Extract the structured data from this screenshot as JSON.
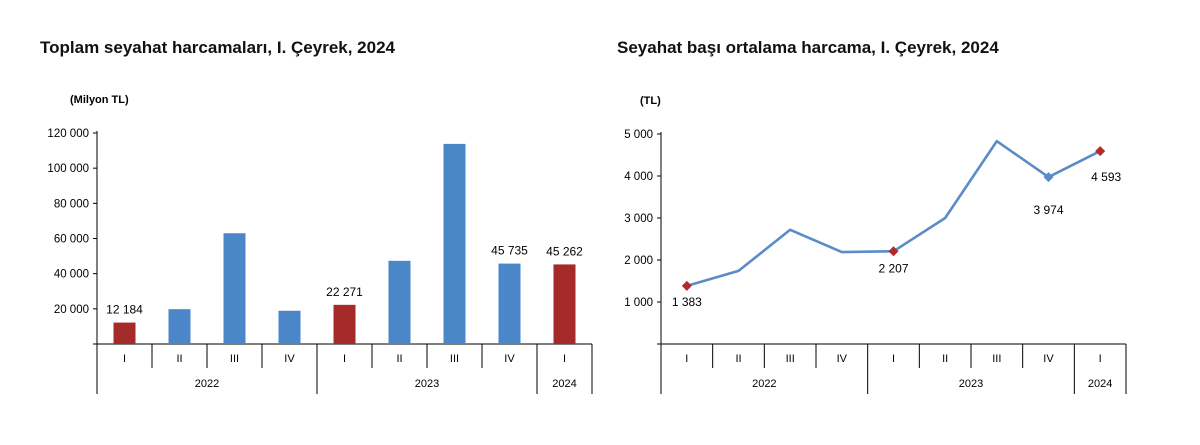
{
  "chart_data": [
    {
      "type": "bar",
      "title": "Toplam seyahat harcamaları, I. Çeyrek, 2024",
      "unit_label": "(Milyon TL)",
      "ylim": [
        0,
        120000
      ],
      "yticks": [
        "120 000",
        "100 000",
        "80 000",
        "60 000",
        "40 000",
        "20 000"
      ],
      "ytick_values": [
        120000,
        100000,
        80000,
        60000,
        40000,
        20000
      ],
      "categories": [
        "I",
        "II",
        "III",
        "IV",
        "I",
        "II",
        "III",
        "IV",
        "I"
      ],
      "years": [
        {
          "label": "2022",
          "span": 4
        },
        {
          "label": "2023",
          "span": 4
        },
        {
          "label": "2024",
          "span": 1
        }
      ],
      "values": [
        12184,
        19800,
        63000,
        18900,
        22271,
        47300,
        113800,
        45735,
        45262
      ],
      "highlighted": [
        0,
        4,
        8
      ],
      "data_labels": [
        "12 184",
        "",
        "",
        "",
        "22 271",
        "",
        "",
        "45 735",
        "45 262"
      ],
      "colors": {
        "default": "#4a86c8",
        "highlight": "#a52a2a"
      },
      "grid": false
    },
    {
      "type": "line",
      "title": "Seyahat başı ortalama harcama, I. Çeyrek, 2024",
      "unit_label": "(TL)",
      "ylim": [
        0,
        5000
      ],
      "yticks": [
        "5 000",
        "4 000",
        "3 000",
        "2 000",
        "1 000"
      ],
      "ytick_values": [
        5000,
        4000,
        3000,
        2000,
        1000
      ],
      "categories": [
        "I",
        "II",
        "III",
        "IV",
        "I",
        "II",
        "III",
        "IV",
        "I"
      ],
      "years": [
        {
          "label": "2022",
          "span": 4
        },
        {
          "label": "2023",
          "span": 4
        },
        {
          "label": "2024",
          "span": 1
        }
      ],
      "values": [
        1383,
        1740,
        2720,
        2190,
        2207,
        3000,
        4830,
        3974,
        4593
      ],
      "markers": [
        0,
        4,
        7,
        8
      ],
      "data_labels": [
        "1 383",
        "",
        "",
        "",
        "2 207",
        "",
        "",
        "3 974",
        "4 593"
      ],
      "colors": {
        "line": "#5b8cc8",
        "marker": "#b22a2a",
        "marker_alt": "#5b8cc8"
      },
      "grid": false
    }
  ]
}
